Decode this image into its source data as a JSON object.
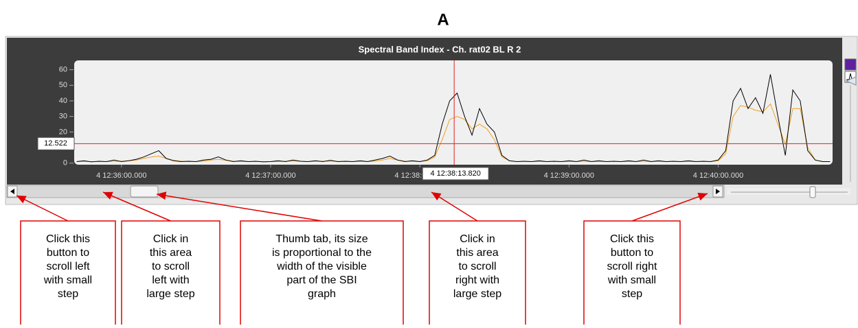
{
  "heading": "A",
  "chart_data": {
    "type": "line",
    "title": "Spectral Band Index - Ch. rat02 BL  R  2",
    "x": [
      -18,
      -15,
      -12,
      -9,
      -6,
      -3,
      0,
      3,
      6,
      9,
      12,
      15,
      18,
      21,
      24,
      27,
      30,
      33,
      36,
      39,
      42,
      45,
      48,
      51,
      54,
      57,
      60,
      63,
      66,
      69,
      72,
      75,
      78,
      81,
      84,
      87,
      90,
      93,
      96,
      99,
      102,
      105,
      108,
      111,
      114,
      117,
      120,
      123,
      126,
      129,
      132,
      135,
      138,
      141,
      144,
      147,
      150,
      153,
      156,
      159,
      162,
      165,
      168,
      171,
      174,
      177,
      180,
      183,
      186,
      189,
      192,
      195,
      198,
      201,
      204,
      207,
      210,
      213,
      216,
      219,
      222,
      225,
      228,
      231,
      234,
      237,
      240,
      243,
      246,
      249,
      252,
      255,
      258,
      261,
      264,
      267,
      270,
      273,
      276,
      279,
      282,
      285
    ],
    "series": [
      {
        "color": "#000000",
        "values": [
          1,
          1.5,
          0.8,
          1.2,
          1,
          2,
          1,
          1.5,
          2.5,
          4,
          6,
          8,
          3,
          1.5,
          1,
          1.2,
          1,
          2,
          2.5,
          4,
          2,
          1,
          1.5,
          1,
          1.2,
          0.8,
          1,
          1.5,
          1,
          2,
          1.2,
          1,
          1.5,
          1,
          1.8,
          1,
          1.2,
          1,
          1.5,
          1,
          2,
          3,
          4.5,
          2,
          1,
          1.5,
          1,
          2,
          5,
          25,
          40,
          45,
          30,
          18,
          35,
          25,
          20,
          5,
          1.5,
          1,
          1.2,
          1,
          1.5,
          1,
          1.2,
          1,
          1.5,
          1,
          2,
          1,
          1.5,
          1,
          1.2,
          1,
          1.5,
          1,
          2,
          1,
          1.5,
          1,
          1.2,
          1,
          1.5,
          1,
          1.2,
          1,
          2,
          8,
          40,
          48,
          35,
          42,
          32,
          57,
          30,
          5,
          47,
          40,
          8,
          2,
          1,
          1
        ]
      },
      {
        "color": "#f0a020",
        "values": [
          1,
          1,
          1,
          1,
          1,
          1.2,
          1.2,
          1.5,
          2,
          3,
          4,
          4.5,
          3,
          1.8,
          1.2,
          1,
          1,
          1.3,
          2,
          2.5,
          1.8,
          1.2,
          1,
          1,
          1,
          1,
          1,
          1,
          1.2,
          1.4,
          1.2,
          1,
          1.1,
          1.2,
          1.3,
          1.1,
          1,
          1,
          1.1,
          1,
          1.3,
          2,
          3,
          2,
          1.2,
          1.1,
          1,
          1.5,
          4,
          15,
          28,
          30,
          28,
          22,
          25,
          22,
          15,
          4,
          1.5,
          1,
          1,
          1,
          1,
          1,
          1,
          1,
          1,
          1,
          1.2,
          1,
          1,
          1,
          1,
          1,
          1,
          1,
          1.2,
          1,
          1.1,
          1,
          1,
          1,
          1,
          1,
          1,
          1,
          1.5,
          6,
          30,
          37,
          36,
          34,
          33,
          38,
          25,
          12,
          35,
          35,
          10,
          2,
          1,
          1
        ]
      }
    ],
    "xlim": [
      -19,
      286
    ],
    "xticks": [
      {
        "value": 0,
        "label": "4 12:36:00.000"
      },
      {
        "value": 60,
        "label": "4 12:37:00.000"
      },
      {
        "value": 120,
        "label": "4 12:38:00.000"
      },
      {
        "value": 180,
        "label": "4 12:39:00.000"
      },
      {
        "value": 240,
        "label": "4 12:40:00.000"
      }
    ],
    "ylim": [
      -1,
      66
    ],
    "yticks": [
      0,
      10,
      20,
      30,
      40,
      50,
      60
    ],
    "cursor": {
      "x": {
        "value": 133.82,
        "label": "4 12:38:13.820"
      },
      "y": 12.522
    },
    "cursor_color": "#e02020"
  },
  "callouts": [
    [
      "Click this",
      "button to",
      "scroll left",
      "with small",
      "step"
    ],
    [
      "Click in",
      "this area",
      "to scroll",
      "left with",
      "large step"
    ],
    [
      "Thumb tab, its size",
      "is proportional to the",
      "width of the visible",
      "part of the SBI",
      "graph"
    ],
    [
      "Click in",
      "this area",
      "to scroll",
      "right with",
      "large step"
    ],
    [
      "Click this",
      "button to",
      "scroll right",
      "with small",
      "step"
    ]
  ]
}
